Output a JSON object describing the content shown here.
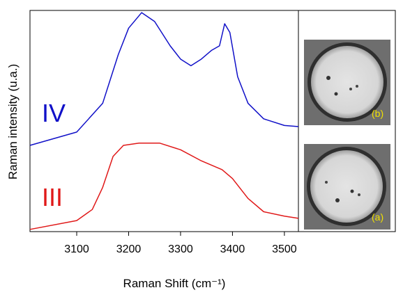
{
  "chart_data": {
    "type": "line",
    "x_label": "Raman Shift (cm⁻¹)",
    "y_label": "Raman intensity (u.a.)",
    "xlim": [
      3010,
      3527
    ],
    "xticks": [
      3100,
      3200,
      3300,
      3400,
      3500
    ],
    "ylim": [
      0,
      100
    ],
    "series": [
      {
        "name": "IV",
        "color": "#1010c8",
        "x": [
          3010,
          3100,
          3150,
          3180,
          3200,
          3225,
          3250,
          3280,
          3300,
          3320,
          3340,
          3360,
          3375,
          3385,
          3395,
          3410,
          3430,
          3460,
          3500,
          3527
        ],
        "values": [
          39,
          45,
          58,
          80,
          92,
          99,
          95,
          84,
          78,
          75,
          78,
          82,
          84,
          94,
          90,
          70,
          58,
          51,
          48,
          47.5
        ]
      },
      {
        "name": "III",
        "color": "#e01818",
        "x": [
          3010,
          3100,
          3130,
          3150,
          3170,
          3190,
          3220,
          3260,
          3300,
          3340,
          3380,
          3400,
          3430,
          3460,
          3500,
          3527
        ],
        "values": [
          1,
          5,
          10,
          20,
          34,
          39,
          40,
          40,
          37,
          32,
          28,
          24,
          15,
          9,
          7,
          6
        ]
      }
    ],
    "insets": [
      {
        "label": "(b)"
      },
      {
        "label": "(a)"
      }
    ]
  }
}
